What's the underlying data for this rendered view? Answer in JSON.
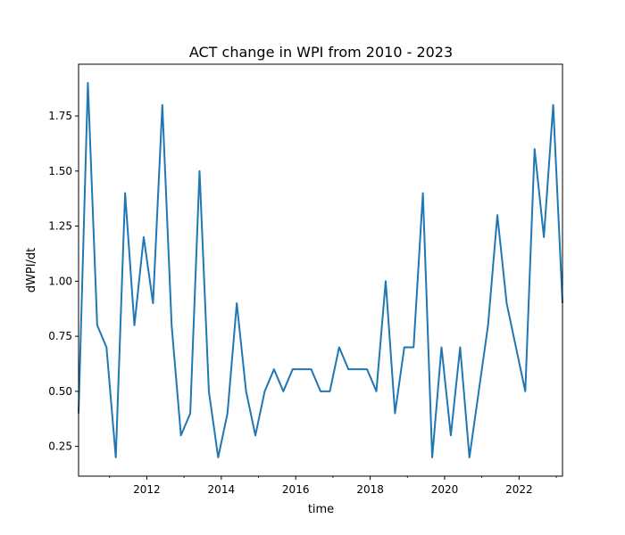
{
  "chart_data": {
    "type": "line",
    "title": "ACT change in WPI from 2010 - 2023",
    "xlabel": "time",
    "ylabel": "dWPI/dt",
    "x_ticks": [
      "2012",
      "2014",
      "2016",
      "2018",
      "2020",
      "2022"
    ],
    "y_ticks": [
      "0.25",
      "0.50",
      "0.75",
      "1.00",
      "1.25",
      "1.50",
      "1.75"
    ],
    "xlim": [
      "2010-03",
      "2023-03"
    ],
    "ylim": [
      0.115,
      1.985
    ],
    "grid": false,
    "series": [
      {
        "color": "#1f77b4",
        "x": [
          "2010-03",
          "2010-06",
          "2010-09",
          "2010-12",
          "2011-03",
          "2011-06",
          "2011-09",
          "2011-12",
          "2012-03",
          "2012-06",
          "2012-09",
          "2012-12",
          "2013-03",
          "2013-06",
          "2013-09",
          "2013-12",
          "2014-03",
          "2014-06",
          "2014-09",
          "2014-12",
          "2015-03",
          "2015-06",
          "2015-09",
          "2015-12",
          "2016-03",
          "2016-06",
          "2016-09",
          "2016-12",
          "2017-03",
          "2017-06",
          "2017-09",
          "2017-12",
          "2018-03",
          "2018-06",
          "2018-09",
          "2018-12",
          "2019-03",
          "2019-06",
          "2019-09",
          "2019-12",
          "2020-03",
          "2020-06",
          "2020-09",
          "2020-12",
          "2021-03",
          "2021-06",
          "2021-09",
          "2021-12",
          "2022-03",
          "2022-06",
          "2022-09",
          "2022-12",
          "2023-03"
        ],
        "values": [
          0.4,
          1.9,
          0.8,
          0.7,
          0.2,
          1.4,
          0.8,
          1.2,
          0.9,
          1.8,
          0.8,
          0.3,
          0.4,
          1.5,
          0.5,
          0.2,
          0.4,
          0.9,
          0.5,
          0.3,
          0.5,
          0.6,
          0.5,
          0.6,
          0.6,
          0.6,
          0.5,
          0.5,
          0.7,
          0.6,
          0.6,
          0.6,
          0.5,
          1.0,
          0.4,
          0.7,
          0.7,
          1.4,
          0.2,
          0.7,
          0.3,
          0.7,
          0.2,
          0.5,
          0.8,
          1.3,
          0.9,
          0.7,
          0.5,
          1.6,
          1.2,
          1.8,
          0.9
        ]
      }
    ]
  }
}
